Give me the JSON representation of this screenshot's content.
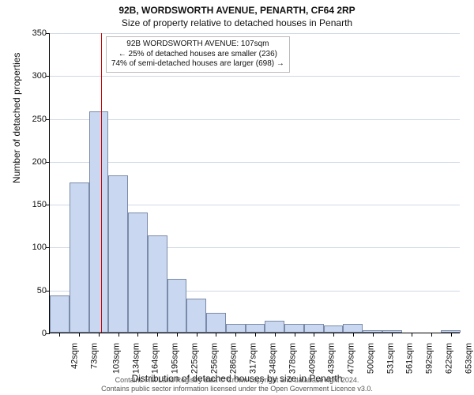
{
  "title_main": "92B, WORDSWORTH AVENUE, PENARTH, CF64 2RP",
  "title_sub": "Size of property relative to detached houses in Penarth",
  "y_axis_label": "Number of detached properties",
  "x_axis_label": "Distribution of detached houses by size in Penarth",
  "legend": {
    "line1": "92B WORDSWORTH AVENUE: 107sqm",
    "line2": "← 25% of detached houses are smaller (236)",
    "line3": "74% of semi-detached houses are larger (698) →"
  },
  "footer": {
    "line1": "Contains HM Land Registry data © Crown copyright and database right 2024.",
    "line2": "Contains public sector information licensed under the Open Government Licence v3.0."
  },
  "chart": {
    "type": "histogram",
    "ylim": [
      0,
      350
    ],
    "ytick_step": 50,
    "grid_color": "#cfd8e6",
    "bar_fill": "#c9d8f0",
    "bar_border": "#7a8aa8",
    "background_color": "#ffffff",
    "marker_value": 107,
    "marker_color": "#cc0000",
    "x_range": [
      27,
      668
    ],
    "categories": [
      "42sqm",
      "73sqm",
      "103sqm",
      "134sqm",
      "164sqm",
      "195sqm",
      "225sqm",
      "256sqm",
      "286sqm",
      "317sqm",
      "348sqm",
      "378sqm",
      "409sqm",
      "439sqm",
      "470sqm",
      "500sqm",
      "531sqm",
      "561sqm",
      "592sqm",
      "622sqm",
      "653sqm"
    ],
    "values": [
      43,
      175,
      258,
      183,
      140,
      113,
      63,
      40,
      23,
      10,
      10,
      14,
      10,
      10,
      8,
      10,
      3,
      3,
      0,
      0,
      3
    ],
    "title_fontsize": 12,
    "label_fontsize": 12,
    "tick_fontsize": 11,
    "legend_fontsize": 10
  }
}
